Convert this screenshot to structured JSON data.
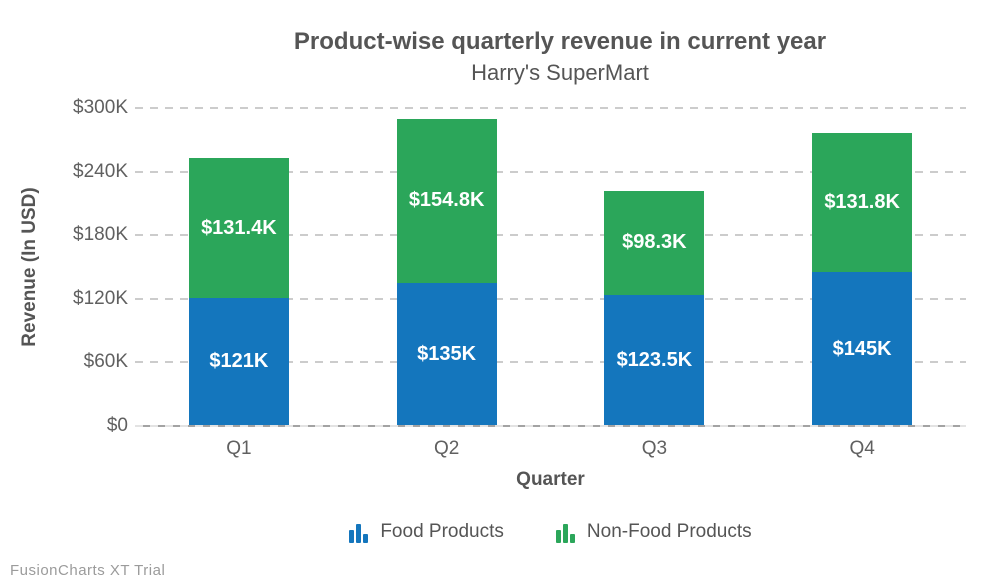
{
  "watermark": "FusionCharts XT Trial",
  "chart_data": {
    "type": "bar",
    "variant": "stacked-column",
    "title": "Product-wise quarterly revenue in current year",
    "subtitle": "Harry's SuperMart",
    "xlabel": "Quarter",
    "ylabel": "Revenue (In USD)",
    "categories": [
      "Q1",
      "Q2",
      "Q3",
      "Q4"
    ],
    "series": [
      {
        "name": "Food Products",
        "color": "#1476bd",
        "values": [
          121,
          135,
          123.5,
          145
        ],
        "labels": [
          "$121K",
          "$135K",
          "$123.5K",
          "$145K"
        ]
      },
      {
        "name": "Non-Food Products",
        "color": "#2ba65a",
        "values": [
          131.4,
          154.8,
          98.3,
          131.8
        ],
        "labels": [
          "$131.4K",
          "$154.8K",
          "$98.3K",
          "$131.8K"
        ]
      }
    ],
    "ylim": [
      0,
      300
    ],
    "yticks": [
      "$0",
      "$60K",
      "$120K",
      "$180K",
      "$240K",
      "$300K"
    ],
    "grid": "horizontal-dashed",
    "legend_position": "bottom",
    "gridline_color": "#cccccc",
    "axis_line_color": "#a3a3a3",
    "text_color": "#555555"
  }
}
